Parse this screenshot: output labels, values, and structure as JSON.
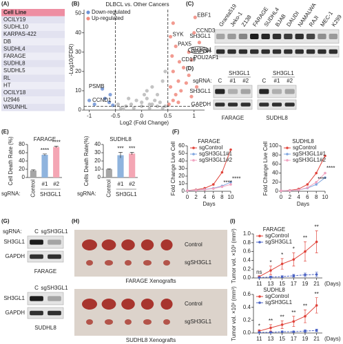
{
  "panel_labels": [
    "(A)",
    "(B)",
    "(C)",
    "(D)",
    "(E)",
    "(F)",
    "(G)",
    "(H)",
    "(I)"
  ],
  "cell_lines": {
    "header": "Cell Line",
    "rows": [
      "OCILY19",
      "SUDHL10",
      "KARPAS-422",
      "DB",
      "SUDHL4",
      "FARAGE",
      "SUDHL8",
      "SUDHL5",
      "RL",
      "HT",
      "OCILY18",
      "U2946",
      "WSUNHL"
    ]
  },
  "blot_c": {
    "lanes": [
      "Granta519",
      "Jeko-1",
      "Z138",
      "FARAGE",
      "SUDHL4",
      "BJAB",
      "DAUDI",
      "NAMALWA",
      "RAJI",
      "MEC-1",
      "K299"
    ],
    "rows": [
      "SH3GL1",
      "GAPDH"
    ]
  },
  "blot_d": {
    "prefix": "sgRNA:",
    "rows": [
      "SH3GL1",
      "GAPDH"
    ],
    "groups": [
      {
        "name": "FARAGE",
        "target": "SH3GL1",
        "lanes": [
          "C",
          "#1",
          "#2"
        ]
      },
      {
        "name": "SUDHL8",
        "target": "SH3GL1",
        "lanes": [
          "C",
          "#1",
          "#2"
        ]
      }
    ]
  },
  "blot_g": {
    "prefix": "sgRNA:",
    "groups": [
      {
        "name": "FARAGE",
        "lanes": [
          "C",
          "sgSH3GL1"
        ],
        "rows": [
          "SH3GL1",
          "GAPDH"
        ]
      },
      {
        "name": "SUDHL8",
        "lanes": [
          "C",
          "sgSH3GL1"
        ],
        "rows": [
          "SH3GL1",
          "GAPDH"
        ]
      }
    ]
  },
  "xenografts": [
    {
      "name": "FARAGE Xenografts",
      "rows": [
        "Control",
        "sgSH3GL1"
      ]
    },
    {
      "name": "SUDHL8 Xenografts",
      "rows": [
        "Control",
        "sgSH3GL1"
      ]
    }
  ],
  "chart_data": [
    {
      "type": "scatter",
      "title": "DLBCL vs. Other Cancers",
      "x_label": "Log2 (Fold Change)",
      "y_label": "-Log10(FDR)",
      "xlim": [
        -1.1,
        1.2
      ],
      "xticks": [
        -1,
        -0.5,
        0,
        0.5,
        1
      ],
      "ylim": [
        0,
        52
      ],
      "yticks": [
        0,
        10,
        20,
        30,
        40,
        50
      ],
      "thresholds": {
        "x": [
          -0.5,
          0.5
        ],
        "y": [
          2
        ]
      },
      "legend": "upper left",
      "series": [
        {
          "name": "Down-regulated",
          "color": "#6f93d6",
          "x": [
            -0.75,
            -0.62,
            -0.55,
            -0.9,
            -0.7,
            -0.6,
            -1.0
          ],
          "values": [
            11,
            4,
            2.5,
            3,
            6,
            8,
            5
          ]
        },
        {
          "name": "Up-regulated",
          "color": "#f08a7e",
          "x": [
            1.02,
            1.0,
            0.55,
            0.65,
            0.9,
            0.72,
            0.95,
            0.6,
            0.7,
            0.8,
            0.55,
            0.65,
            0.9,
            0.6,
            0.75,
            1.1,
            0.58,
            0.85,
            0.52,
            0.7,
            1.05,
            0.6,
            0.95
          ],
          "values": [
            48,
            40,
            38,
            33,
            30,
            25,
            26,
            20,
            15,
            22,
            12,
            8,
            18,
            5,
            10,
            35,
            28,
            14,
            3,
            4,
            12,
            45,
            7
          ]
        },
        {
          "color": "#b8b8b8",
          "x": [
            -0.4,
            -0.3,
            -0.2,
            -0.1,
            0,
            0.1,
            0.2,
            0.3,
            0.4,
            -0.45,
            0.35,
            0.05,
            -0.15,
            0.15,
            0.25,
            -0.35,
            0.45,
            0.1,
            0.2,
            0.3,
            0.4,
            0.45,
            -0.25,
            0,
            0.15
          ],
          "values": [
            1,
            2,
            3,
            5,
            4,
            6,
            3,
            2,
            1,
            3,
            4,
            8,
            1,
            1,
            5,
            0.5,
            2,
            10,
            12,
            8,
            15,
            20,
            6,
            2,
            3
          ]
        }
      ],
      "annotations": [
        {
          "text": "EBF1",
          "x": 1.02,
          "y": 48,
          "color": "#e0503f"
        },
        {
          "text": "CCND3",
          "x": 1.0,
          "y": 40,
          "color": "#e0503f"
        },
        {
          "text": "SYK",
          "x": 0.55,
          "y": 38,
          "color": "#e0503f"
        },
        {
          "text": "PAX5",
          "x": 0.65,
          "y": 33,
          "color": "#e0503f"
        },
        {
          "text": "SH3GL1",
          "x": 0.9,
          "y": 30,
          "color": "#e0503f"
        },
        {
          "text": "CD19",
          "x": 0.72,
          "y": 25,
          "color": "#e0503f"
        },
        {
          "text": "POU2AF1",
          "x": 0.95,
          "y": 26,
          "color": "#e0503f"
        },
        {
          "text": "PSMB",
          "x": -0.75,
          "y": 11,
          "color": "#4a72c4"
        },
        {
          "text": "CCND1",
          "x": -0.62,
          "y": 4,
          "color": "#4a72c4"
        }
      ]
    },
    {
      "type": "bar",
      "title": "FARAGE",
      "y_label": "Cell Death Rate (%)",
      "categories": [
        "Control",
        "#1",
        "#2"
      ],
      "values": [
        17,
        55,
        74
      ],
      "errors": [
        1.5,
        2,
        2
      ],
      "colors": [
        "#a6a6a6",
        "#8fb4de",
        "#f4a6b4"
      ],
      "ylim": [
        0,
        80
      ],
      "yticks": [
        0,
        20,
        40,
        60,
        80
      ],
      "significance": [
        null,
        "****",
        "****"
      ],
      "category_prefix": "sgRNA:",
      "group_label": "SH3GL1"
    },
    {
      "type": "bar",
      "title": "SUDHL8",
      "y_label": "Cells Death Rate(%)",
      "categories": [
        "Control",
        "#1",
        "#2"
      ],
      "values": [
        10,
        27,
        29
      ],
      "errors": [
        0.5,
        3.5,
        1.5
      ],
      "colors": [
        "#a6a6a6",
        "#8fb4de",
        "#f4a6b4"
      ],
      "ylim": [
        0,
        40
      ],
      "yticks": [
        0,
        10,
        20,
        30,
        40
      ],
      "significance": [
        null,
        "***",
        "***"
      ],
      "category_prefix": "sgRNA:",
      "group_label": "SH3GL1"
    },
    {
      "type": "line",
      "title": "FARAGE",
      "x_label": "Days",
      "y_label": "Fold Change Live Cell",
      "x": [
        0,
        2,
        4,
        6,
        8,
        10
      ],
      "xlim": [
        0,
        10
      ],
      "xticks": [
        0,
        2,
        4,
        6,
        8,
        10
      ],
      "ylim": [
        0,
        60
      ],
      "yticks": [
        0,
        10,
        20,
        30,
        40,
        50,
        60
      ],
      "series": [
        {
          "name": "sgControl",
          "color": "#e0433a",
          "values": [
            1,
            2,
            4,
            9,
            25,
            55
          ]
        },
        {
          "name": "sgSH3GL1#1",
          "color": "#7fa6e0",
          "values": [
            1,
            1.5,
            2.5,
            4,
            7,
            12
          ]
        },
        {
          "name": "sgSH3GL1#2",
          "color": "#f0a3c0",
          "values": [
            1,
            1.4,
            2.2,
            3.5,
            6,
            9
          ]
        }
      ],
      "annotations": [
        {
          "text": "****",
          "x": 8,
          "y": 11,
          "color": "#7fa6e0"
        },
        {
          "text": "****",
          "x": 10,
          "y": 16,
          "color": "#7fa6e0"
        }
      ]
    },
    {
      "type": "line",
      "title": "SUDHL8",
      "x_label": "Days",
      "y_label": "Fold Change Live Cell",
      "x": [
        0,
        2,
        4,
        6,
        8,
        10
      ],
      "xlim": [
        0,
        10
      ],
      "xticks": [
        0,
        2,
        4,
        6,
        8,
        10
      ],
      "ylim": [
        0,
        100
      ],
      "yticks": [
        0,
        20,
        40,
        60,
        80,
        100
      ],
      "series": [
        {
          "name": "sgControl",
          "color": "#e0433a",
          "values": [
            1,
            2,
            5,
            15,
            40,
            78
          ]
        },
        {
          "name": "sgSH3GL1#1",
          "color": "#7fa6e0",
          "values": [
            1,
            1.5,
            3,
            7,
            15,
            30
          ]
        },
        {
          "name": "sgSH3GL1#2",
          "color": "#f0a3c0",
          "values": [
            1,
            1.5,
            3,
            8,
            20,
            40
          ]
        }
      ],
      "annotations": [
        {
          "text": "****",
          "x": 8,
          "y": 26,
          "color": "#7fa6e0"
        },
        {
          "text": "****",
          "x": 10,
          "y": 50,
          "color": "#7fa6e0"
        }
      ]
    },
    {
      "type": "line",
      "title": "FARAGE",
      "x_label": "(Days)",
      "y_label": "Tumor vol. ×10³ (mm³)",
      "x": [
        11,
        13,
        15,
        17,
        19,
        21
      ],
      "xlim": [
        10,
        22
      ],
      "xticks": [
        11,
        13,
        15,
        17,
        19,
        21
      ],
      "ylim": [
        0,
        1
      ],
      "yticks": [
        {
          "value": 0,
          "label": "0.0"
        },
        0.2,
        0.4,
        0.6,
        0.8,
        {
          "value": 1,
          "label": "1.0"
        }
      ],
      "series": [
        {
          "name": "sgControl",
          "color": "#e0433a",
          "values": [
            0.03,
            0.17,
            0.32,
            0.42,
            0.6,
            0.82
          ],
          "errors": [
            0.02,
            0.1,
            0.12,
            0.15,
            0.22,
            0.25
          ]
        },
        {
          "name": "sgSH3GL1",
          "color": "#4a62c4",
          "values": [
            0.01,
            0.02,
            0.03,
            0.05,
            0.07,
            0.08
          ],
          "errors": [
            0.01,
            0.02,
            0.02,
            0.03,
            0.04,
            0.05
          ]
        }
      ],
      "significance": [
        "ns",
        "*",
        "*",
        "*",
        "**",
        "**"
      ]
    },
    {
      "type": "line",
      "title": "SUDHL8",
      "x_label": "(Days)",
      "y_label": "Tumor vol. ×10³ (mm³)",
      "x": [
        11,
        13,
        15,
        17,
        19,
        21
      ],
      "xlim": [
        10,
        22
      ],
      "xticks": [
        11,
        13,
        15,
        17,
        19,
        21
      ],
      "ylim": [
        0,
        0.6
      ],
      "yticks": [
        {
          "value": 0,
          "label": "0.0"
        },
        0.2,
        0.4,
        0.6
      ],
      "series": [
        {
          "name": "sgControl",
          "color": "#e0433a",
          "values": [
            0.03,
            0.08,
            0.13,
            0.18,
            0.26,
            0.43
          ],
          "errors": [
            0.02,
            0.05,
            0.06,
            0.08,
            0.1,
            0.12
          ]
        },
        {
          "name": "sgSH3GL1",
          "color": "#4a62c4",
          "values": [
            0.01,
            0.01,
            0.02,
            0.02,
            0.03,
            0.04
          ],
          "errors": [
            0.005,
            0.01,
            0.01,
            0.01,
            0.02,
            0.02
          ]
        }
      ],
      "significance": [
        "*",
        "**",
        "**",
        "**",
        "**",
        "**"
      ]
    }
  ]
}
